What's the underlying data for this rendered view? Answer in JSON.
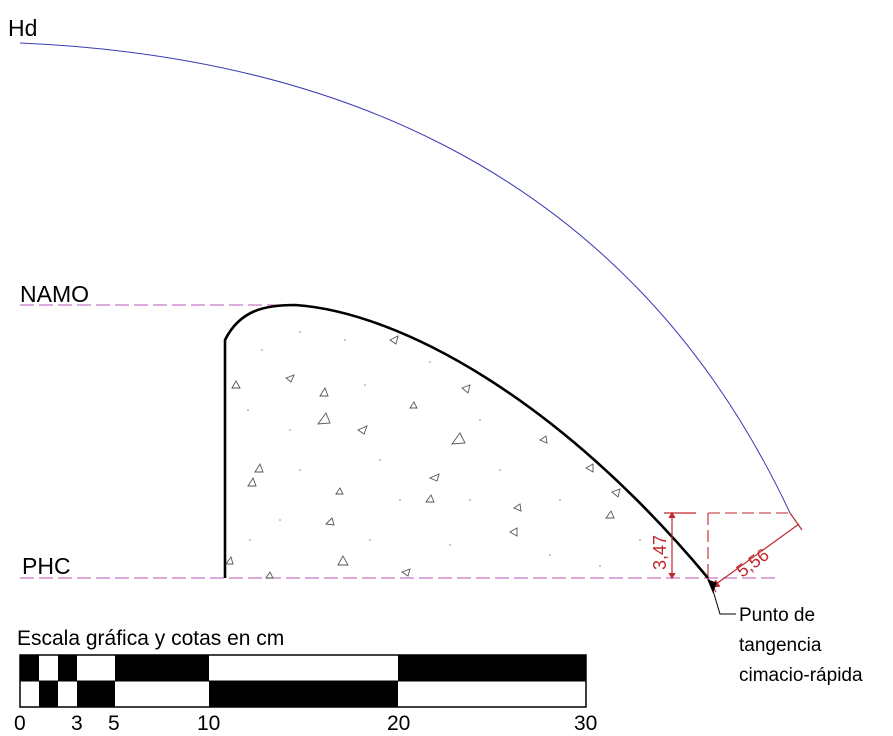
{
  "labels": {
    "hd": "Hd",
    "namo": "NAMO",
    "phc": "PHC"
  },
  "dimensions": {
    "vertical": "3,47",
    "diagonal": "5,56"
  },
  "callout": {
    "line1": "Punto de",
    "line2": "tangencia",
    "line3": "cimacio-rápida"
  },
  "scale": {
    "title": "Escala gráfica y cotas en cm",
    "ticks": [
      "0",
      "3",
      "5",
      "10",
      "20",
      "30"
    ]
  },
  "colors": {
    "hd_curve": "#3b3bb3",
    "reference_lines": "#c678c6",
    "dimension": "#c0272d",
    "structure": "#000000"
  }
}
